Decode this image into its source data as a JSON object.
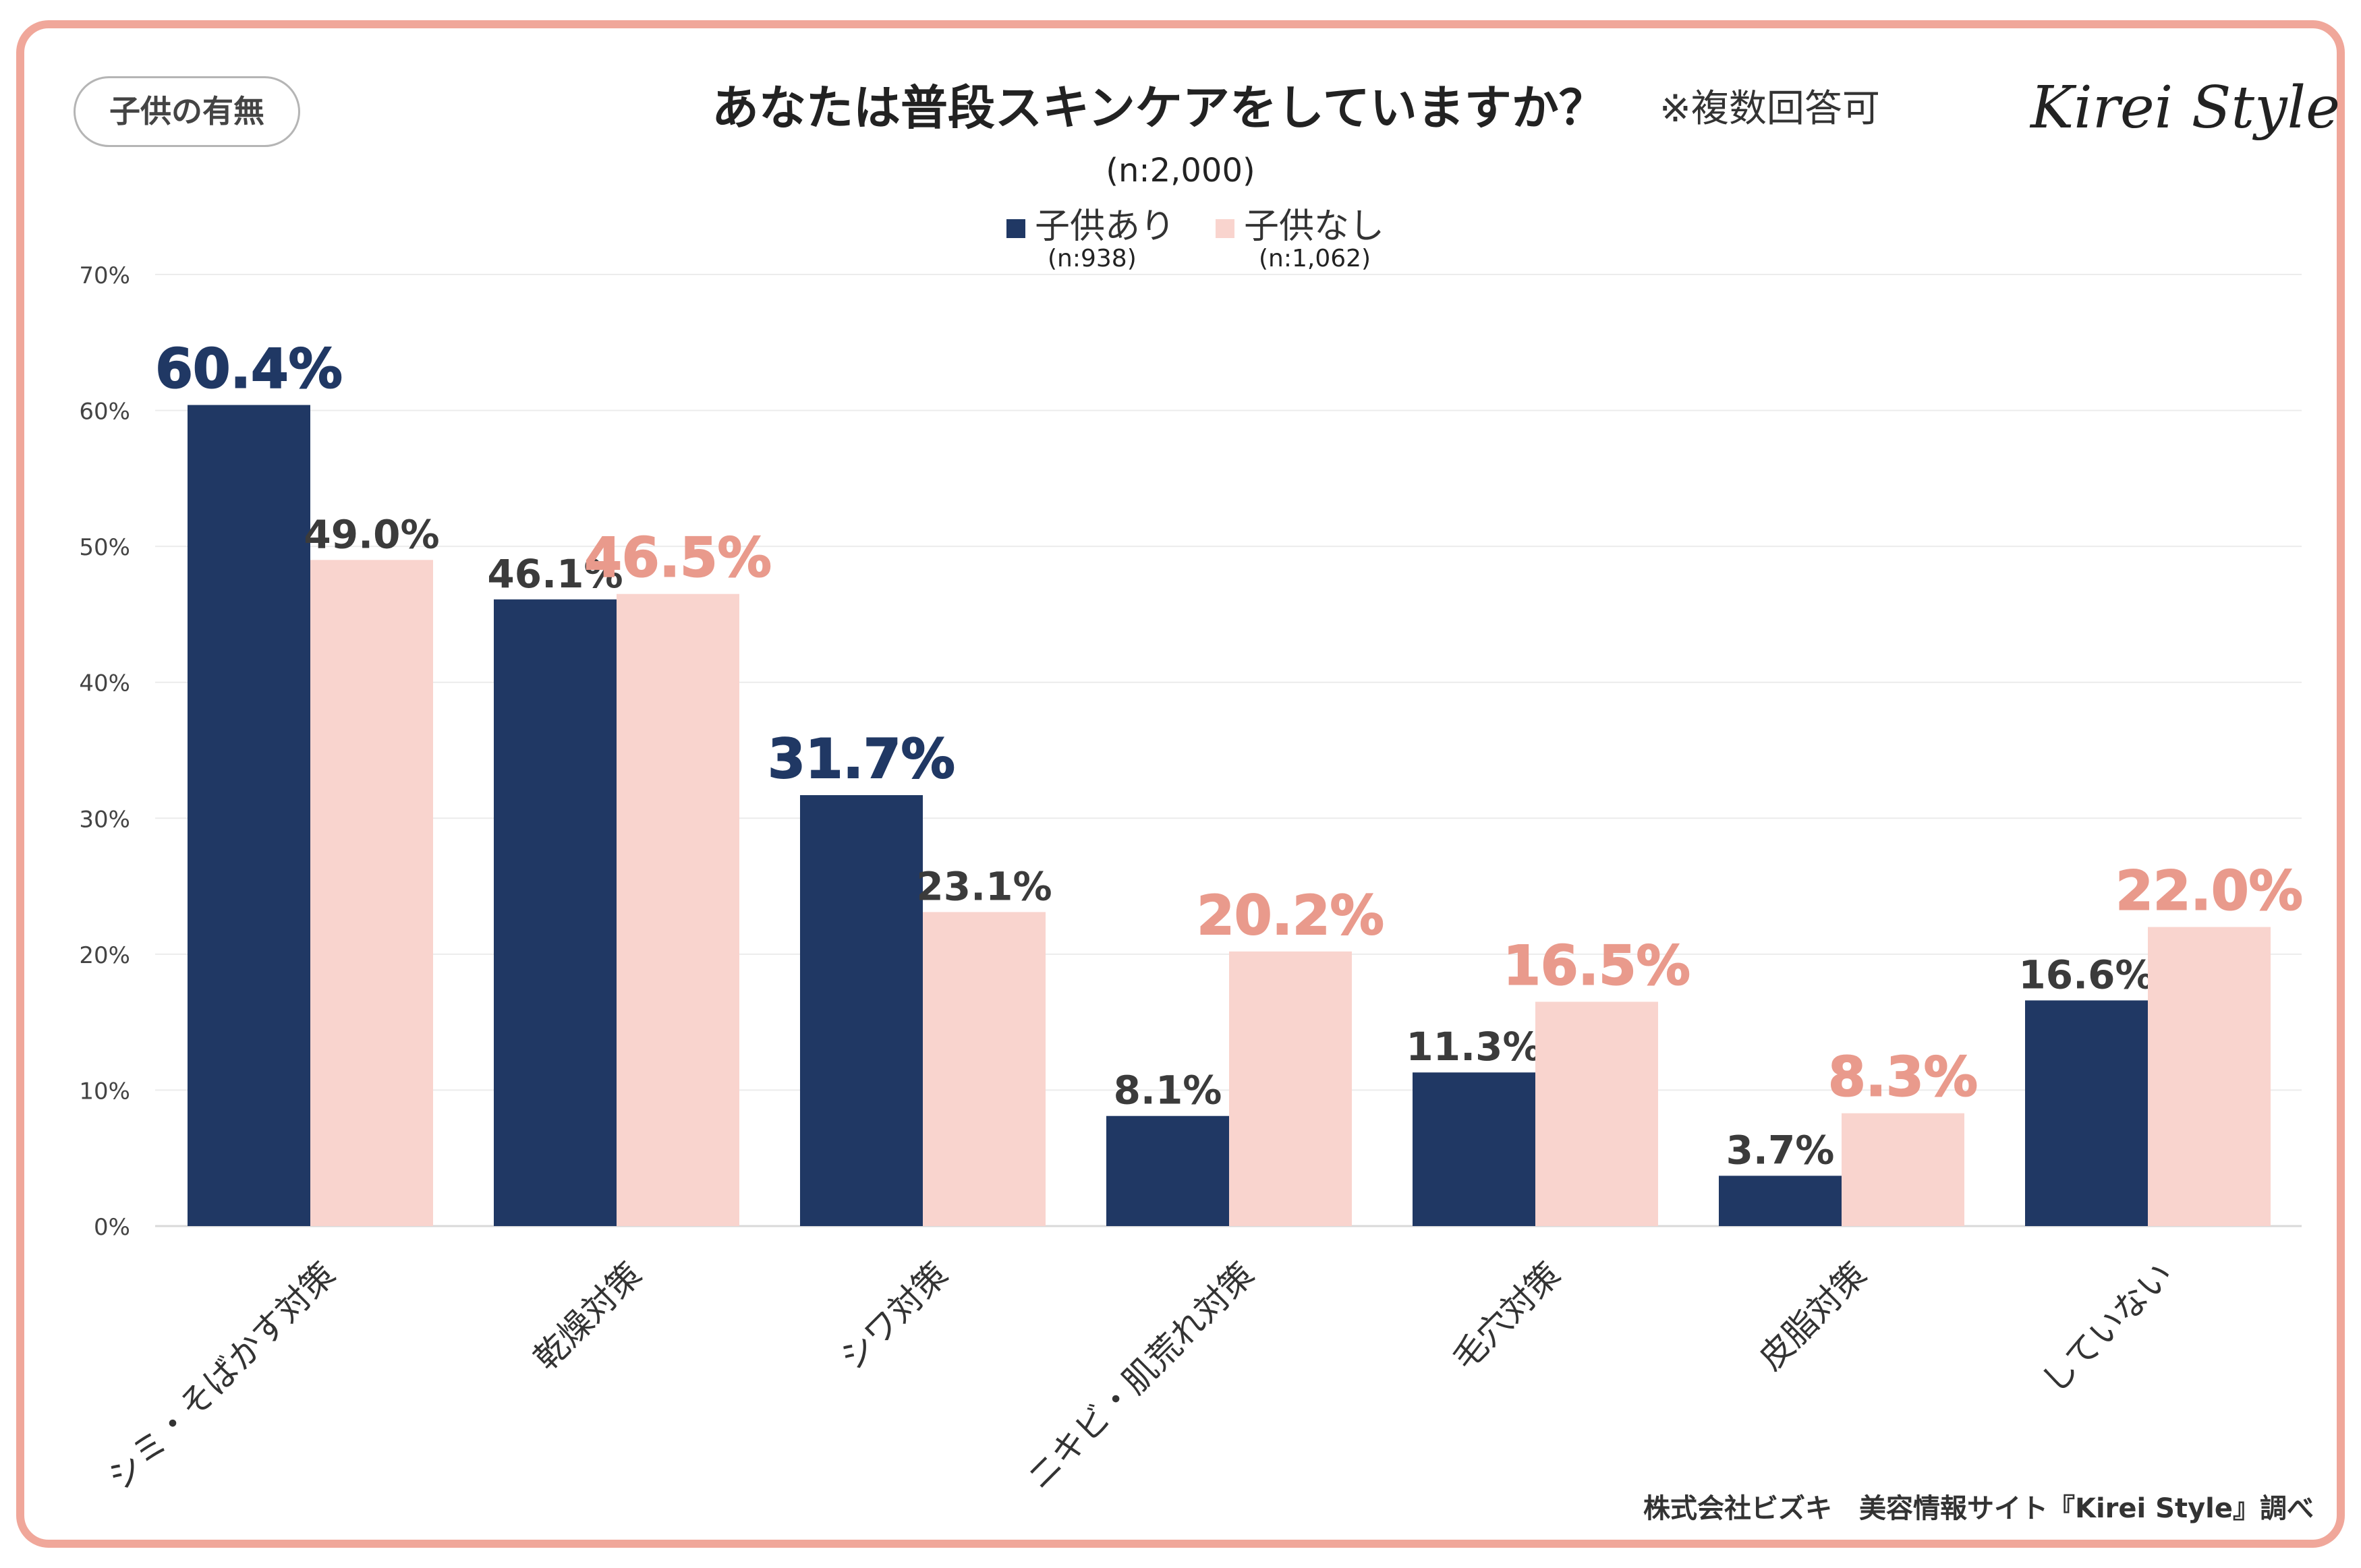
{
  "header": {
    "tag": "子供の有無",
    "title": "あなたは普段スキンケアをしていますか？",
    "note": "※複数回答可",
    "logo": "Kirei Style",
    "sample": "(n:2,000)"
  },
  "legend": [
    {
      "label": "子供あり",
      "n": "(n:938)"
    },
    {
      "label": "子供なし",
      "n": "(n:1,062)"
    }
  ],
  "colors": {
    "series1": "#203864",
    "series2": "#f9d4ce",
    "highlight1": "#203864",
    "highlight2": "#e99a8c",
    "normal_label": "#3b3b3b",
    "frame": "#f0a79a"
  },
  "footer": {
    "credit": "株式会社ビズキ　美容情報サイト『Kirei Style』調べ"
  },
  "chart_data": {
    "type": "bar",
    "title": "あなたは普段スキンケアをしていますか？",
    "categories": [
      "シミ・そばかす対策",
      "乾燥対策",
      "シワ対策",
      "ニキビ・肌荒れ対策",
      "毛穴対策",
      "皮脂対策",
      "していない"
    ],
    "series": [
      {
        "name": "子供あり",
        "values": [
          60.4,
          46.1,
          31.7,
          8.1,
          11.3,
          3.7,
          16.6
        ],
        "labels": [
          "60.4%",
          "46.1%",
          "31.7%",
          "8.1%",
          "11.3%",
          "3.7%",
          "16.6%"
        ],
        "highlight": [
          true,
          false,
          true,
          false,
          false,
          false,
          false
        ]
      },
      {
        "name": "子供なし",
        "values": [
          49.0,
          46.5,
          23.1,
          20.2,
          16.5,
          8.3,
          22.0
        ],
        "labels": [
          "49.0%",
          "46.5%",
          "23.1%",
          "20.2%",
          "16.5%",
          "8.3%",
          "22.0%"
        ],
        "highlight": [
          false,
          true,
          false,
          true,
          true,
          true,
          true
        ]
      }
    ],
    "ylim": [
      0,
      70
    ],
    "yticks": [
      0,
      10,
      20,
      30,
      40,
      50,
      60,
      70
    ],
    "ytick_labels": [
      "0%",
      "10%",
      "20%",
      "30%",
      "40%",
      "50%",
      "60%",
      "70%"
    ],
    "grid": true,
    "xlabel": "",
    "ylabel": ""
  }
}
